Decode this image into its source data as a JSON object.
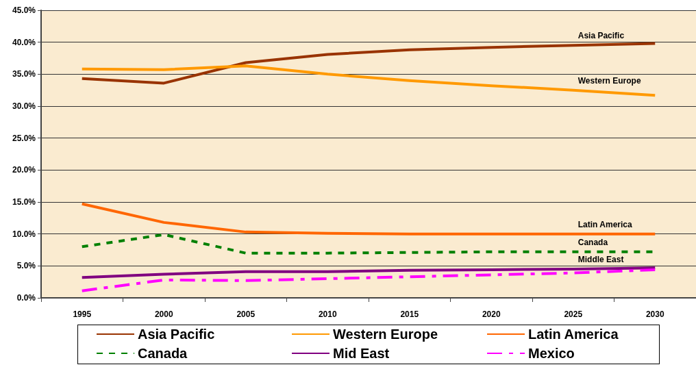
{
  "chart_data": {
    "type": "line",
    "categories": [
      "1995",
      "2000",
      "2005",
      "2010",
      "2015",
      "2020",
      "2025",
      "2030"
    ],
    "series": [
      {
        "name": "Asia Pacific",
        "color": "#993300",
        "line_style": "solid",
        "values": [
          34.3,
          33.6,
          36.8,
          38.1,
          38.8,
          39.2,
          39.5,
          39.8
        ]
      },
      {
        "name": "Western Europe",
        "color": "#ff9900",
        "line_style": "solid",
        "values": [
          35.8,
          35.7,
          36.3,
          35.0,
          34.0,
          33.2,
          32.5,
          31.7
        ]
      },
      {
        "name": "Latin America",
        "color": "#ff6600",
        "line_style": "solid",
        "values": [
          14.7,
          11.8,
          10.3,
          10.1,
          10.0,
          10.0,
          10.0,
          10.0
        ]
      },
      {
        "name": "Canada",
        "color": "#008000",
        "line_style": "dotted",
        "values": [
          8.0,
          9.9,
          7.0,
          7.0,
          7.1,
          7.2,
          7.2,
          7.2
        ]
      },
      {
        "name": "Mid East",
        "color": "#800080",
        "line_style": "solid",
        "values": [
          3.2,
          3.7,
          4.1,
          4.1,
          4.3,
          4.4,
          4.5,
          4.7
        ]
      },
      {
        "name": "Mexico",
        "color": "#ff00ff",
        "line_style": "dashed",
        "values": [
          1.1,
          2.8,
          2.7,
          3.0,
          3.3,
          3.6,
          3.9,
          4.4
        ]
      }
    ],
    "ylim": [
      0,
      45
    ],
    "yticks": [
      {
        "value": 0,
        "label": "0.0%"
      },
      {
        "value": 5,
        "label": "5.0%"
      },
      {
        "value": 10,
        "label": "10.0%"
      },
      {
        "value": 15,
        "label": "15.0%"
      },
      {
        "value": 20,
        "label": "20.0%"
      },
      {
        "value": 25,
        "label": "25.0%"
      },
      {
        "value": 30,
        "label": "30.0%"
      },
      {
        "value": 35,
        "label": "35.0%"
      },
      {
        "value": 40,
        "label": "40.0%"
      },
      {
        "value": 45,
        "label": "45.0%"
      }
    ],
    "annotations": [
      "Asia Pacific",
      "Western Europe",
      "Latin America",
      "Canada",
      "Middle East"
    ],
    "grid": "y",
    "legend": "bottom",
    "marker": "none"
  }
}
